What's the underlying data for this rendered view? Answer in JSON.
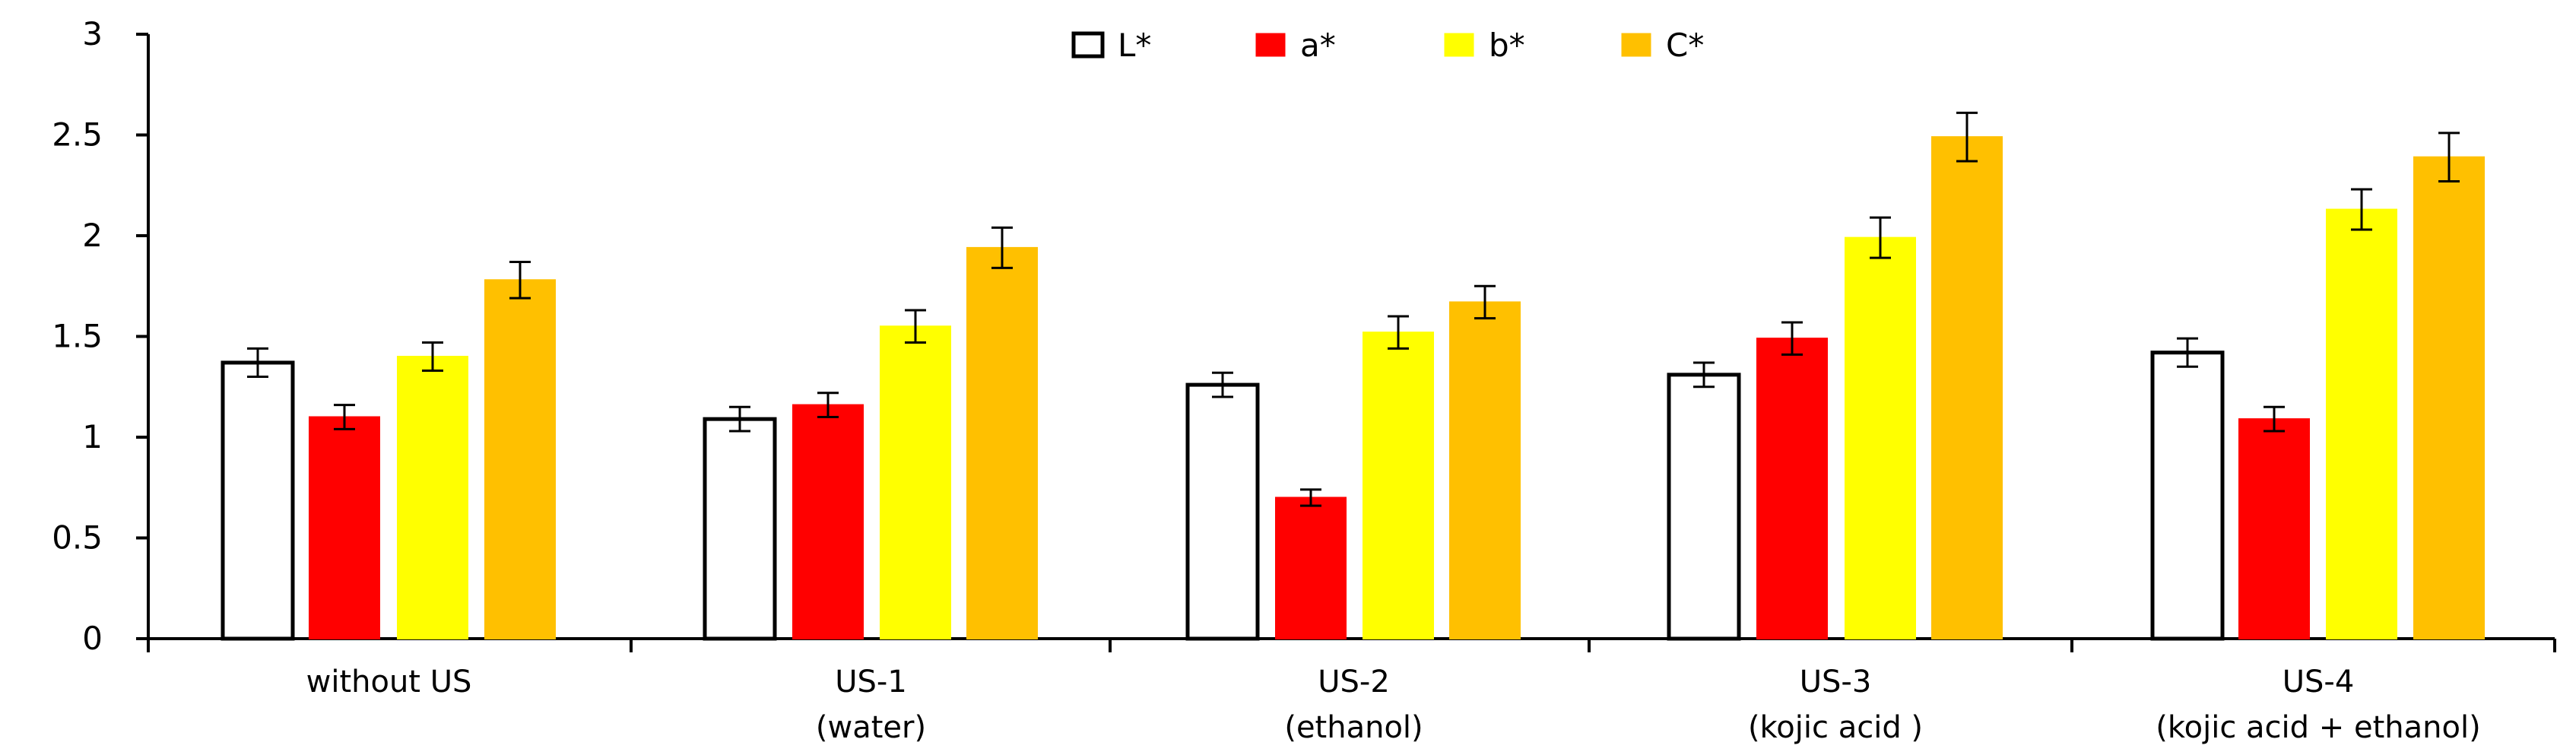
{
  "chart_data": {
    "type": "bar",
    "title": "",
    "xlabel": "",
    "ylabel": "",
    "ylim": [
      0,
      3
    ],
    "yticks": [
      "0",
      "0.5",
      "1",
      "1.5",
      "2",
      "2.5",
      "3"
    ],
    "grid": false,
    "legend_position": "top-center",
    "categories": [
      [
        "without US"
      ],
      [
        "US-1",
        "(water)"
      ],
      [
        "US-2",
        "(ethanol)"
      ],
      [
        "US-3",
        "(kojic acid )"
      ],
      [
        "US-4",
        "(kojic acid +  ethanol)"
      ]
    ],
    "series": [
      {
        "name": "L*",
        "color": "#ffffff",
        "stroke": "#000000",
        "values": [
          1.37,
          1.09,
          1.26,
          1.31,
          1.42
        ],
        "errors": [
          0.07,
          0.06,
          0.06,
          0.06,
          0.07
        ]
      },
      {
        "name": "a*",
        "color": "#ff0000",
        "stroke": "#ff0000",
        "values": [
          1.1,
          1.16,
          0.7,
          1.49,
          1.09
        ],
        "errors": [
          0.06,
          0.06,
          0.04,
          0.08,
          0.06
        ]
      },
      {
        "name": "b*",
        "color": "#ffff00",
        "stroke": "#ffff00",
        "values": [
          1.4,
          1.55,
          1.52,
          1.99,
          2.13
        ],
        "errors": [
          0.07,
          0.08,
          0.08,
          0.1,
          0.1
        ]
      },
      {
        "name": "C*",
        "color": "#ffc000",
        "stroke": "#ffc000",
        "values": [
          1.78,
          1.94,
          1.67,
          2.49,
          2.39
        ],
        "errors": [
          0.09,
          0.1,
          0.08,
          0.12,
          0.12
        ]
      }
    ]
  }
}
